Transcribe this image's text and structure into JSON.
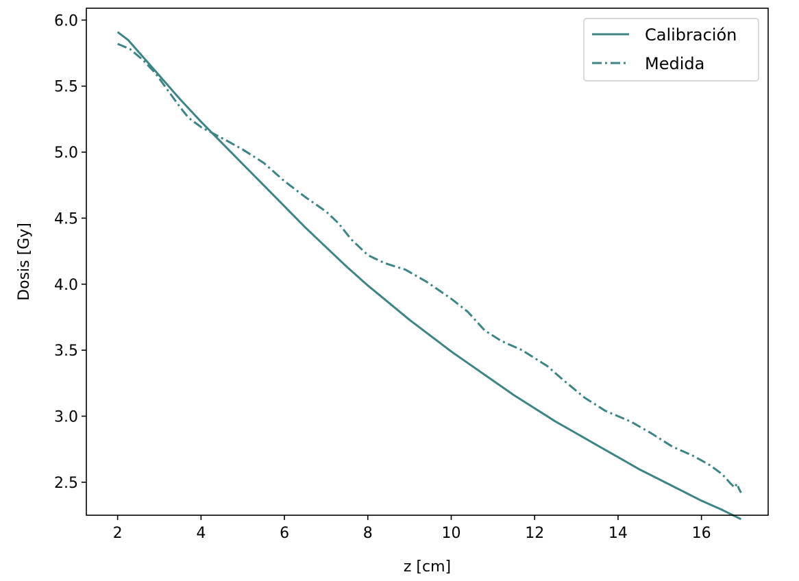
{
  "chart_data": {
    "type": "line",
    "title": "",
    "xlabel": "z [cm]",
    "ylabel": "Dosis [Gy]",
    "xlim": [
      1.25,
      17.6
    ],
    "ylim": [
      2.25,
      6.09
    ],
    "xticks": [
      2,
      4,
      6,
      8,
      10,
      12,
      14,
      16
    ],
    "yticks": [
      2.5,
      3.0,
      3.5,
      4.0,
      4.5,
      5.0,
      5.5,
      6.0
    ],
    "xtick_labels": [
      "2",
      "4",
      "6",
      "8",
      "10",
      "12",
      "14",
      "16"
    ],
    "ytick_labels": [
      "2.5",
      "3.0",
      "3.5",
      "4.0",
      "4.5",
      "5.0",
      "5.5",
      "6.0"
    ],
    "grid": false,
    "legend_position": "top-right",
    "color": "#3d8585",
    "series": [
      {
        "name": "Calibración",
        "style": "solid",
        "x": [
          2.0,
          2.25,
          2.5,
          3.0,
          3.5,
          4.0,
          4.5,
          5.0,
          5.5,
          6.0,
          6.5,
          7.0,
          7.5,
          8.0,
          8.5,
          9.0,
          9.5,
          10.0,
          10.5,
          11.0,
          11.5,
          12.0,
          12.5,
          13.0,
          13.5,
          14.0,
          14.5,
          15.0,
          15.5,
          16.0,
          16.5,
          16.95
        ],
        "y": [
          5.91,
          5.85,
          5.76,
          5.58,
          5.4,
          5.23,
          5.07,
          4.91,
          4.75,
          4.59,
          4.43,
          4.28,
          4.13,
          3.99,
          3.86,
          3.73,
          3.61,
          3.49,
          3.38,
          3.27,
          3.16,
          3.06,
          2.96,
          2.87,
          2.78,
          2.69,
          2.6,
          2.52,
          2.44,
          2.36,
          2.29,
          2.22
        ]
      },
      {
        "name": "Medida",
        "style": "dashdot",
        "x": [
          2.0,
          2.3,
          2.6,
          2.9,
          3.2,
          3.5,
          3.7,
          4.0,
          4.3,
          4.6,
          5.0,
          5.5,
          6.0,
          6.5,
          7.0,
          7.3,
          7.6,
          8.0,
          8.4,
          8.9,
          9.4,
          10.0,
          10.4,
          10.8,
          11.2,
          11.7,
          12.3,
          12.7,
          13.2,
          13.7,
          14.3,
          14.8,
          15.3,
          15.8,
          16.2,
          16.5,
          16.7,
          16.8,
          16.85,
          16.9,
          16.95
        ],
        "y": [
          5.82,
          5.78,
          5.7,
          5.6,
          5.47,
          5.34,
          5.26,
          5.19,
          5.14,
          5.09,
          5.02,
          4.92,
          4.78,
          4.66,
          4.55,
          4.46,
          4.34,
          4.22,
          4.16,
          4.11,
          4.02,
          3.89,
          3.79,
          3.65,
          3.57,
          3.5,
          3.38,
          3.27,
          3.14,
          3.04,
          2.96,
          2.87,
          2.77,
          2.7,
          2.63,
          2.56,
          2.49,
          2.46,
          2.49,
          2.45,
          2.42
        ]
      }
    ]
  }
}
